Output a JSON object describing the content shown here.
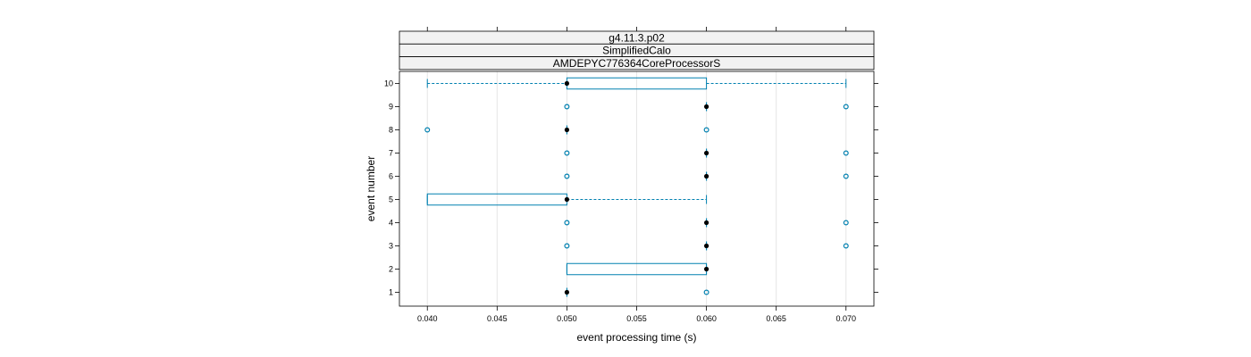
{
  "chart_data": {
    "type": "box",
    "orientation": "horizontal",
    "strips": [
      "g4.11.3.p02",
      "SimplifiedCalo",
      "AMDEPYC776364CoreProcessorS"
    ],
    "xlabel": "event processing time (s)",
    "ylabel": "event number",
    "xlim": [
      0.038,
      0.072
    ],
    "x_ticks": [
      "0.040",
      "0.045",
      "0.050",
      "0.055",
      "0.060",
      "0.065",
      "0.070"
    ],
    "categories": [
      "1",
      "2",
      "3",
      "4",
      "5",
      "6",
      "7",
      "8",
      "9",
      "10"
    ],
    "grid": true,
    "colors": {
      "box": "#0080b0",
      "median": "#000000",
      "grid": "#e6e6e6",
      "strip_bg": "#f2f2f2"
    },
    "boxes": [
      {
        "event": "1",
        "min": 0.05,
        "q1": 0.05,
        "median": 0.05,
        "q3": 0.05,
        "max": 0.05,
        "outliers": [
          0.06
        ]
      },
      {
        "event": "2",
        "min": 0.05,
        "q1": 0.05,
        "median": 0.06,
        "q3": 0.06,
        "max": 0.06,
        "outliers": []
      },
      {
        "event": "3",
        "min": 0.06,
        "q1": 0.06,
        "median": 0.06,
        "q3": 0.06,
        "max": 0.06,
        "outliers": [
          0.05,
          0.07
        ]
      },
      {
        "event": "4",
        "min": 0.06,
        "q1": 0.06,
        "median": 0.06,
        "q3": 0.06,
        "max": 0.06,
        "outliers": [
          0.05,
          0.07
        ]
      },
      {
        "event": "5",
        "min": 0.04,
        "q1": 0.04,
        "median": 0.05,
        "q3": 0.05,
        "max": 0.06,
        "outliers": []
      },
      {
        "event": "6",
        "min": 0.06,
        "q1": 0.06,
        "median": 0.06,
        "q3": 0.06,
        "max": 0.06,
        "outliers": [
          0.05,
          0.07
        ]
      },
      {
        "event": "7",
        "min": 0.06,
        "q1": 0.06,
        "median": 0.06,
        "q3": 0.06,
        "max": 0.06,
        "outliers": [
          0.05,
          0.07
        ]
      },
      {
        "event": "8",
        "min": 0.05,
        "q1": 0.05,
        "median": 0.05,
        "q3": 0.05,
        "max": 0.05,
        "outliers": [
          0.04,
          0.06
        ]
      },
      {
        "event": "9",
        "min": 0.06,
        "q1": 0.06,
        "median": 0.06,
        "q3": 0.06,
        "max": 0.06,
        "outliers": [
          0.05,
          0.07
        ]
      },
      {
        "event": "10",
        "min": 0.04,
        "q1": 0.05,
        "median": 0.05,
        "q3": 0.06,
        "max": 0.07,
        "outliers": []
      }
    ]
  }
}
